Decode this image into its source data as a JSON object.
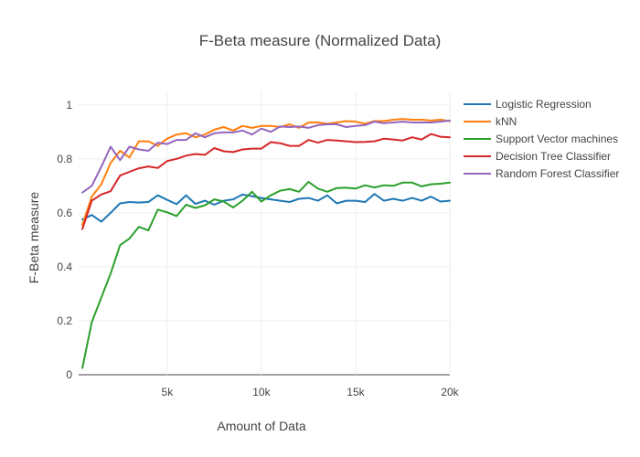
{
  "chart_data": {
    "type": "line",
    "title": "F-Beta measure (Normalized Data)",
    "xlabel": "Amount of Data",
    "ylabel": "F-Beta measure",
    "xlim": [
      300,
      20000
    ],
    "ylim": [
      0,
      1.05
    ],
    "x_ticks": [
      {
        "value": 5000,
        "label": "5k"
      },
      {
        "value": 10000,
        "label": "10k"
      },
      {
        "value": 15000,
        "label": "15k"
      },
      {
        "value": 20000,
        "label": "20k"
      }
    ],
    "y_ticks": [
      {
        "value": 0,
        "label": "0"
      },
      {
        "value": 0.2,
        "label": "0.2"
      },
      {
        "value": 0.4,
        "label": "0.4"
      },
      {
        "value": 0.6,
        "label": "0.6"
      },
      {
        "value": 0.8,
        "label": "0.8"
      },
      {
        "value": 1,
        "label": "1"
      }
    ],
    "grid": true,
    "legend": "right",
    "x": [
      500,
      1000,
      1500,
      2000,
      2500,
      3000,
      3500,
      4000,
      4500,
      5000,
      5500,
      6000,
      6500,
      7000,
      7500,
      8000,
      8500,
      9000,
      9500,
      10000,
      10500,
      11000,
      11500,
      12000,
      12500,
      13000,
      13500,
      14000,
      14500,
      15000,
      15500,
      16000,
      16500,
      17000,
      17500,
      18000,
      18500,
      19000,
      19500,
      20000
    ],
    "series": [
      {
        "name": "Logistic Regression",
        "color": "#1f77b4",
        "values": [
          0.575,
          0.592,
          0.567,
          0.6,
          0.635,
          0.64,
          0.638,
          0.64,
          0.665,
          0.648,
          0.632,
          0.665,
          0.633,
          0.645,
          0.63,
          0.645,
          0.65,
          0.668,
          0.662,
          0.655,
          0.65,
          0.645,
          0.64,
          0.652,
          0.655,
          0.645,
          0.665,
          0.635,
          0.645,
          0.645,
          0.64,
          0.67,
          0.645,
          0.652,
          0.645,
          0.655,
          0.645,
          0.66,
          0.642,
          0.645
        ]
      },
      {
        "name": "kNN",
        "color": "#ff7f0e",
        "values": [
          0.555,
          0.66,
          0.705,
          0.785,
          0.83,
          0.805,
          0.865,
          0.865,
          0.848,
          0.875,
          0.89,
          0.895,
          0.88,
          0.89,
          0.908,
          0.918,
          0.905,
          0.922,
          0.915,
          0.922,
          0.922,
          0.918,
          0.928,
          0.915,
          0.935,
          0.935,
          0.93,
          0.935,
          0.94,
          0.938,
          0.93,
          0.94,
          0.94,
          0.945,
          0.948,
          0.945,
          0.945,
          0.942,
          0.945,
          0.94
        ]
      },
      {
        "name": "Support Vector machines",
        "color": "#2ca02c",
        "values": [
          0.025,
          0.195,
          0.285,
          0.375,
          0.48,
          0.505,
          0.548,
          0.535,
          0.612,
          0.602,
          0.588,
          0.63,
          0.618,
          0.628,
          0.65,
          0.642,
          0.62,
          0.645,
          0.678,
          0.642,
          0.665,
          0.682,
          0.688,
          0.678,
          0.715,
          0.69,
          0.678,
          0.692,
          0.693,
          0.69,
          0.702,
          0.694,
          0.702,
          0.7,
          0.712,
          0.712,
          0.698,
          0.706,
          0.708,
          0.712
        ]
      },
      {
        "name": "Decision Tree Classifier",
        "color": "#d62728",
        "values": [
          0.54,
          0.645,
          0.668,
          0.68,
          0.738,
          0.752,
          0.765,
          0.772,
          0.766,
          0.792,
          0.8,
          0.812,
          0.818,
          0.815,
          0.84,
          0.828,
          0.825,
          0.835,
          0.838,
          0.838,
          0.862,
          0.858,
          0.848,
          0.848,
          0.87,
          0.86,
          0.87,
          0.868,
          0.865,
          0.862,
          0.863,
          0.865,
          0.875,
          0.872,
          0.868,
          0.88,
          0.872,
          0.892,
          0.882,
          0.88
        ]
      },
      {
        "name": "Random Forest Classifier",
        "color": "#9467bd",
        "values": [
          0.675,
          0.7,
          0.77,
          0.845,
          0.795,
          0.845,
          0.835,
          0.83,
          0.86,
          0.855,
          0.87,
          0.87,
          0.895,
          0.88,
          0.895,
          0.898,
          0.898,
          0.905,
          0.89,
          0.912,
          0.9,
          0.92,
          0.918,
          0.92,
          0.915,
          0.925,
          0.928,
          0.928,
          0.918,
          0.922,
          0.925,
          0.938,
          0.932,
          0.935,
          0.938,
          0.935,
          0.935,
          0.935,
          0.938,
          0.942
        ]
      }
    ]
  }
}
